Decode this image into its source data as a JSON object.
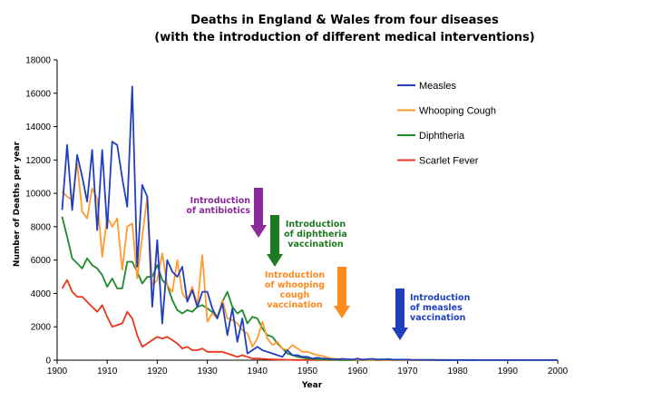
{
  "chart_data": {
    "type": "line",
    "title": "Deaths in England & Wales from four diseases",
    "subtitle": "(with the introduction of different medical interventions)",
    "xlabel": "Year",
    "ylabel": "Number of Deaths per year",
    "xlim": [
      1900,
      2000
    ],
    "ylim": [
      0,
      18000
    ],
    "xticks": [
      "1900",
      "1910",
      "1920",
      "1930",
      "1940",
      "1950",
      "1960",
      "1970",
      "1980",
      "1990",
      "2000"
    ],
    "yticks": [
      "0",
      "2000",
      "4000",
      "6000",
      "8000",
      "10000",
      "12000",
      "14000",
      "16000",
      "18000"
    ],
    "grid": false,
    "legend_position": "top-right",
    "x": [
      1901,
      1902,
      1903,
      1904,
      1905,
      1906,
      1907,
      1908,
      1909,
      1910,
      1911,
      1912,
      1913,
      1914,
      1915,
      1916,
      1917,
      1918,
      1919,
      1920,
      1921,
      1922,
      1923,
      1924,
      1925,
      1926,
      1927,
      1928,
      1929,
      1930,
      1931,
      1932,
      1933,
      1934,
      1935,
      1936,
      1937,
      1938,
      1939,
      1940,
      1941,
      1942,
      1943,
      1944,
      1945,
      1946,
      1947,
      1948,
      1949,
      1950,
      1951,
      1952,
      1953,
      1954,
      1955,
      1956,
      1957,
      1958,
      1959,
      1960,
      1961,
      1962,
      1963,
      1964,
      1965,
      1966,
      1967,
      1968,
      1969,
      1970,
      1971,
      1972,
      1973,
      1974,
      1975,
      1976,
      1977,
      1978,
      1979,
      1980,
      1981,
      1982,
      1983,
      1984,
      1985,
      1986,
      1987,
      1988,
      1989,
      1990,
      1991,
      1992,
      1993,
      1994,
      1995,
      1996,
      1997,
      1998,
      1999,
      2000
    ],
    "series": [
      {
        "name": "Measles",
        "color": "#1f3fbf",
        "values": [
          9000,
          12900,
          9000,
          12300,
          11000,
          9500,
          12600,
          7800,
          12600,
          7900,
          13100,
          12900,
          10900,
          9200,
          16400,
          5600,
          10500,
          9800,
          3200,
          7200,
          2200,
          6000,
          5300,
          5000,
          5600,
          3500,
          4200,
          3200,
          4100,
          4100,
          3100,
          2500,
          3400,
          1500,
          3100,
          1100,
          2500,
          400,
          600,
          800,
          600,
          500,
          400,
          300,
          200,
          600,
          300,
          300,
          200,
          200,
          100,
          150,
          100,
          80,
          60,
          50,
          80,
          60,
          40,
          100,
          30,
          60,
          80,
          40,
          50,
          60,
          40,
          30,
          40,
          30,
          20,
          20,
          20,
          15,
          15,
          10,
          10,
          10,
          10,
          10,
          10,
          10,
          10,
          5,
          5,
          5,
          5,
          5,
          5,
          5,
          5,
          5,
          5,
          5,
          5,
          5,
          5,
          5,
          5,
          5
        ]
      },
      {
        "name": "Whooping Cough",
        "color": "#ff9a2e",
        "values": [
          10100,
          9800,
          9600,
          11800,
          8900,
          8500,
          10300,
          9700,
          6200,
          8600,
          8000,
          8500,
          5400,
          8000,
          8200,
          4900,
          7400,
          9800,
          4500,
          4800,
          6400,
          4500,
          4100,
          6000,
          4000,
          3600,
          4400,
          3300,
          6300,
          2300,
          2800,
          2500,
          3600,
          2500,
          2400,
          2200,
          1800,
          1600,
          800,
          1300,
          2300,
          1300,
          900,
          1100,
          700,
          600,
          900,
          700,
          500,
          500,
          400,
          300,
          250,
          150,
          100,
          80,
          60,
          50,
          40,
          30,
          25,
          20,
          20,
          15,
          15,
          15,
          10,
          10,
          10,
          10,
          10,
          10,
          10,
          10,
          10,
          10,
          10,
          10,
          5,
          5,
          5,
          5,
          5,
          5,
          5,
          5,
          5,
          5,
          5,
          5,
          5,
          5,
          5,
          5,
          5,
          5,
          5,
          5,
          5,
          5
        ]
      },
      {
        "name": "Diphtheria",
        "color": "#1e8a2a",
        "values": [
          8600,
          7400,
          6100,
          5800,
          5500,
          6100,
          5700,
          5500,
          5100,
          4400,
          4900,
          4300,
          4300,
          5900,
          5900,
          5300,
          4600,
          5000,
          5000,
          5700,
          4800,
          4500,
          3600,
          3000,
          2800,
          3000,
          2900,
          3200,
          3300,
          3100,
          2900,
          2600,
          3500,
          4100,
          3200,
          2800,
          3000,
          2200,
          2600,
          2500,
          1900,
          1500,
          1400,
          1000,
          700,
          400,
          300,
          200,
          150,
          100,
          80,
          50,
          40,
          30,
          20,
          15,
          10,
          10,
          5,
          5,
          5,
          5,
          5,
          5,
          5,
          5,
          5,
          5,
          5,
          5,
          5,
          5,
          5,
          5,
          5,
          5,
          5,
          5,
          5,
          5,
          5,
          5,
          5,
          5,
          5,
          5,
          5,
          5,
          5,
          5,
          5,
          5,
          5,
          5,
          5,
          5,
          5,
          5,
          5,
          5
        ]
      },
      {
        "name": "Scarlet Fever",
        "color": "#e8361c",
        "values": [
          4300,
          4800,
          4100,
          3800,
          3800,
          3500,
          3200,
          2900,
          3300,
          2600,
          2000,
          2100,
          2200,
          2900,
          2500,
          1500,
          800,
          1000,
          1200,
          1400,
          1300,
          1400,
          1200,
          1000,
          700,
          800,
          600,
          600,
          700,
          500,
          500,
          500,
          500,
          400,
          300,
          200,
          300,
          200,
          100,
          100,
          80,
          60,
          50,
          40,
          30,
          20,
          15,
          10,
          10,
          10,
          5,
          5,
          5,
          5,
          5,
          5,
          5,
          5,
          5,
          5,
          5,
          5,
          5,
          5,
          5,
          5,
          5,
          5,
          5,
          5,
          5,
          5,
          5,
          5,
          5,
          5,
          5,
          5,
          5,
          5,
          5,
          5,
          5,
          5,
          5,
          5,
          5,
          5,
          5,
          5,
          5,
          5,
          5,
          5,
          5,
          5,
          5,
          5,
          5,
          5
        ]
      }
    ],
    "annotations": [
      {
        "id": "antibiotics",
        "lines": [
          "Introduction",
          "of antibiotics"
        ],
        "color": "#8b2a9a",
        "year": 1940
      },
      {
        "id": "diphtheria",
        "lines": [
          "Introduction",
          "of diphtheria",
          "vaccination"
        ],
        "color": "#1e7a20",
        "year": 1943
      },
      {
        "id": "whooping",
        "lines": [
          "Introduction",
          "of whooping",
          "cough",
          "vaccination"
        ],
        "color": "#ff8a1e",
        "year": 1957
      },
      {
        "id": "measles",
        "lines": [
          "Introduction",
          "of measles",
          "vaccination"
        ],
        "color": "#1f3fbf",
        "year": 1968
      }
    ]
  }
}
